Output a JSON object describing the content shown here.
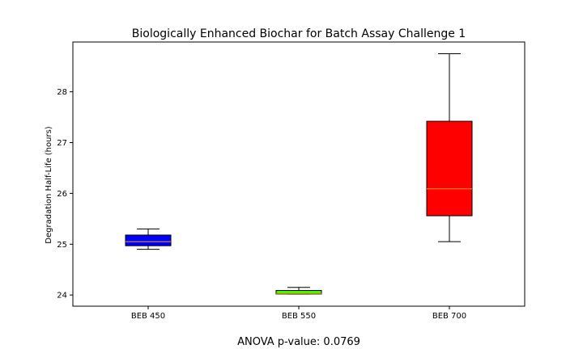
{
  "chart_data": {
    "type": "box",
    "title": "Biologically Enhanced Biochar for Batch Assay Challenge 1",
    "xlabel": "",
    "ylabel": "Degradation Half-Life (hours)",
    "ylim": [
      23.78,
      28.98
    ],
    "yticks": [
      24,
      25,
      26,
      27,
      28
    ],
    "grid": false,
    "categories": [
      "BEB 450",
      "BEB 550",
      "BEB 700"
    ],
    "boxes": [
      {
        "label": "BEB 450",
        "whislo": 24.9,
        "q1": 24.97,
        "med": 25.05,
        "q3": 25.18,
        "whishi": 25.3,
        "color": "#0000ff"
      },
      {
        "label": "BEB 550",
        "whislo": 24.02,
        "q1": 24.02,
        "med": 24.03,
        "q3": 24.09,
        "whishi": 24.15,
        "color": "#33ff00"
      },
      {
        "label": "BEB 700",
        "whislo": 25.05,
        "q1": 25.56,
        "med": 26.09,
        "q3": 27.42,
        "whishi": 28.75,
        "color": "#ff0000"
      }
    ],
    "median_color": "#ffa500"
  },
  "footer": {
    "anova_text": "ANOVA p-value: 0.0769"
  }
}
